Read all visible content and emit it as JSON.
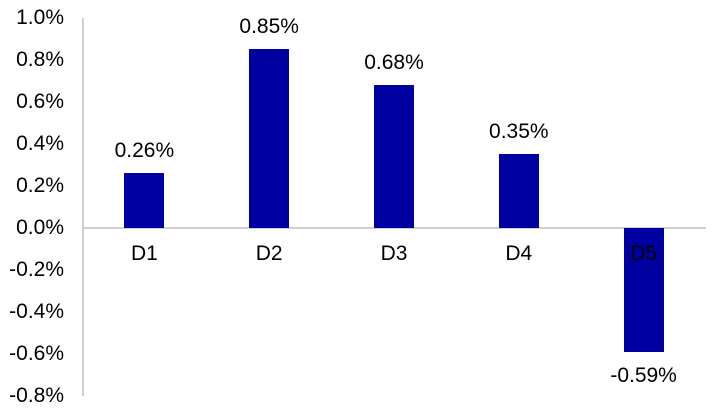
{
  "chart_data": {
    "type": "bar",
    "title": "",
    "xlabel": "",
    "ylabel": "",
    "categories": [
      "D1",
      "D2",
      "D3",
      "D4",
      "D5"
    ],
    "values": [
      0.26,
      0.85,
      0.68,
      0.35,
      -0.59
    ],
    "data_labels": [
      "0.26%",
      "0.85%",
      "0.68%",
      "0.35%",
      "-0.59%"
    ],
    "y_tick_labels": [
      "1.0%",
      "0.8%",
      "0.6%",
      "0.4%",
      "0.2%",
      "0.0%",
      "-0.2%",
      "-0.4%",
      "-0.6%",
      "-0.8%"
    ],
    "ylim": [
      -0.8,
      1.0
    ],
    "y_step": 0.2,
    "unit": "percent",
    "grid": "zero-line-only",
    "legend": "none",
    "colors": {
      "bar": "#0000A0",
      "axis": "#CFCFCF",
      "text": "#000000"
    }
  }
}
